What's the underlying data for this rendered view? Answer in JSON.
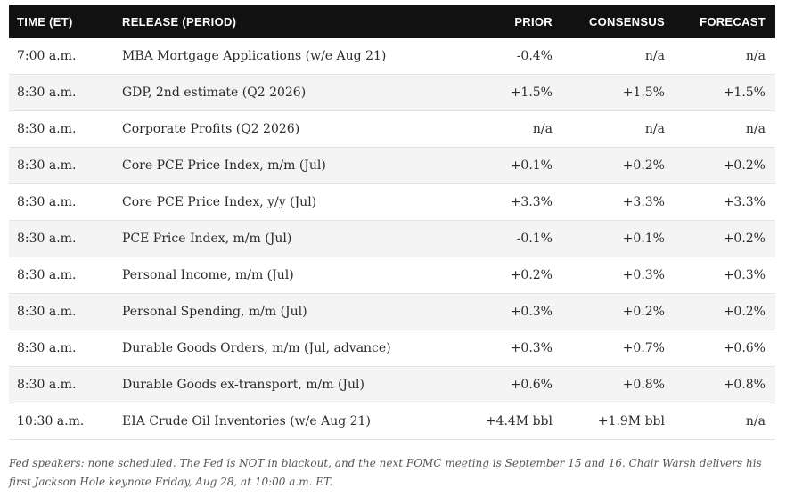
{
  "table": {
    "headers": {
      "time": "TIME (ET)",
      "release": "RELEASE (PERIOD)",
      "prior": "PRIOR",
      "consensus": "CONSENSUS",
      "forecast": "FORECAST"
    },
    "rows": [
      {
        "time": "7:00 a.m.",
        "release": "MBA Mortgage Applications (w/e Aug 21)",
        "prior": "-0.4%",
        "consensus": "n/a",
        "forecast": "n/a"
      },
      {
        "time": "8:30 a.m.",
        "release": "GDP, 2nd estimate (Q2 2026)",
        "prior": "+1.5%",
        "consensus": "+1.5%",
        "forecast": "+1.5%"
      },
      {
        "time": "8:30 a.m.",
        "release": "Corporate Profits (Q2 2026)",
        "prior": "n/a",
        "consensus": "n/a",
        "forecast": "n/a"
      },
      {
        "time": "8:30 a.m.",
        "release": "Core PCE Price Index, m/m (Jul)",
        "prior": "+0.1%",
        "consensus": "+0.2%",
        "forecast": "+0.2%"
      },
      {
        "time": "8:30 a.m.",
        "release": "Core PCE Price Index, y/y (Jul)",
        "prior": "+3.3%",
        "consensus": "+3.3%",
        "forecast": "+3.3%"
      },
      {
        "time": "8:30 a.m.",
        "release": "PCE Price Index, m/m (Jul)",
        "prior": "-0.1%",
        "consensus": "+0.1%",
        "forecast": "+0.2%"
      },
      {
        "time": "8:30 a.m.",
        "release": "Personal Income, m/m (Jul)",
        "prior": "+0.2%",
        "consensus": "+0.3%",
        "forecast": "+0.3%"
      },
      {
        "time": "8:30 a.m.",
        "release": "Personal Spending, m/m (Jul)",
        "prior": "+0.3%",
        "consensus": "+0.2%",
        "forecast": "+0.2%"
      },
      {
        "time": "8:30 a.m.",
        "release": "Durable Goods Orders, m/m (Jul, advance)",
        "prior": "+0.3%",
        "consensus": "+0.7%",
        "forecast": "+0.6%"
      },
      {
        "time": "8:30 a.m.",
        "release": "Durable Goods ex-transport, m/m (Jul)",
        "prior": "+0.6%",
        "consensus": "+0.8%",
        "forecast": "+0.8%"
      },
      {
        "time": "10:30 a.m.",
        "release": "EIA Crude Oil Inventories (w/e Aug 21)",
        "prior": "+4.4M bbl",
        "consensus": "+1.9M bbl",
        "forecast": "n/a"
      }
    ]
  },
  "footnote": "Fed speakers: none scheduled. The Fed is NOT in blackout, and the next FOMC meeting is September 15 and 16. Chair Warsh delivers his first Jackson Hole keynote Friday, Aug 28, at 10:00 a.m. ET."
}
